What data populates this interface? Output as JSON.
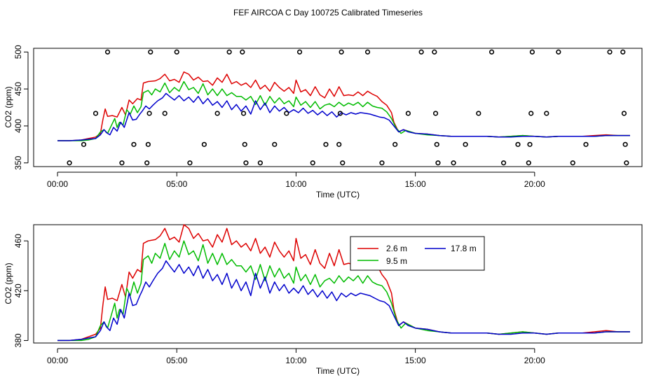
{
  "title": "FEF AIRCOA C  Day 100725  Calibrated Timeseries",
  "colors": {
    "series_2_6": "#dd0000",
    "series_9_5": "#00bb00",
    "series_17_8": "#0000cc",
    "axis": "#000000"
  },
  "chart_data": [
    {
      "type": "scatter+line",
      "xlabel": "Time (UTC)",
      "ylabel": "CO2 (ppm)",
      "xlim": [
        -1,
        24.5
      ],
      "ylim": [
        345,
        505
      ],
      "xticks": [
        0,
        5,
        10,
        15,
        20
      ],
      "xtick_labels": [
        "00:00",
        "05:00",
        "10:00",
        "15:00",
        "20:00"
      ],
      "yticks": [
        350,
        400,
        450,
        500
      ],
      "ytick_labels": [
        "350",
        "400",
        "450",
        "500"
      ],
      "flag_points": [
        {
          "x": 0.5,
          "y": 350
        },
        {
          "x": 1.1,
          "y": 375
        },
        {
          "x": 1.6,
          "y": 417
        },
        {
          "x": 2.1,
          "y": 500
        },
        {
          "x": 2.7,
          "y": 350
        },
        {
          "x": 3.2,
          "y": 375
        },
        {
          "x": 3.75,
          "y": 350
        },
        {
          "x": 3.8,
          "y": 375
        },
        {
          "x": 3.85,
          "y": 417
        },
        {
          "x": 3.9,
          "y": 500
        },
        {
          "x": 4.5,
          "y": 417
        },
        {
          "x": 5.0,
          "y": 500
        },
        {
          "x": 5.55,
          "y": 350
        },
        {
          "x": 6.15,
          "y": 375
        },
        {
          "x": 6.7,
          "y": 417
        },
        {
          "x": 7.2,
          "y": 500
        },
        {
          "x": 7.75,
          "y": 500
        },
        {
          "x": 7.8,
          "y": 417
        },
        {
          "x": 7.85,
          "y": 375
        },
        {
          "x": 7.9,
          "y": 350
        },
        {
          "x": 8.5,
          "y": 350
        },
        {
          "x": 9.1,
          "y": 375
        },
        {
          "x": 9.6,
          "y": 417
        },
        {
          "x": 10.15,
          "y": 500
        },
        {
          "x": 10.7,
          "y": 350
        },
        {
          "x": 11.25,
          "y": 375
        },
        {
          "x": 11.8,
          "y": 375
        },
        {
          "x": 11.85,
          "y": 417
        },
        {
          "x": 11.9,
          "y": 500
        },
        {
          "x": 11.95,
          "y": 350
        },
        {
          "x": 13.0,
          "y": 500
        },
        {
          "x": 13.6,
          "y": 350
        },
        {
          "x": 14.15,
          "y": 375
        },
        {
          "x": 14.7,
          "y": 417
        },
        {
          "x": 15.25,
          "y": 500
        },
        {
          "x": 15.8,
          "y": 500
        },
        {
          "x": 15.85,
          "y": 417
        },
        {
          "x": 15.9,
          "y": 375
        },
        {
          "x": 15.95,
          "y": 350
        },
        {
          "x": 16.6,
          "y": 350
        },
        {
          "x": 17.1,
          "y": 375
        },
        {
          "x": 17.65,
          "y": 417
        },
        {
          "x": 18.2,
          "y": 500
        },
        {
          "x": 18.7,
          "y": 350
        },
        {
          "x": 19.3,
          "y": 375
        },
        {
          "x": 19.75,
          "y": 350
        },
        {
          "x": 19.8,
          "y": 375
        },
        {
          "x": 19.85,
          "y": 417
        },
        {
          "x": 19.9,
          "y": 500
        },
        {
          "x": 20.5,
          "y": 417
        },
        {
          "x": 21.0,
          "y": 500
        },
        {
          "x": 21.6,
          "y": 350
        },
        {
          "x": 22.15,
          "y": 375
        },
        {
          "x": 23.15,
          "y": 500
        },
        {
          "x": 23.7,
          "y": 500
        },
        {
          "x": 23.75,
          "y": 417
        },
        {
          "x": 23.8,
          "y": 375
        },
        {
          "x": 23.85,
          "y": 350
        }
      ]
    },
    {
      "type": "line",
      "xlabel": "Time (UTC)",
      "ylabel": "CO2 (ppm)",
      "xlim": [
        -1,
        24.5
      ],
      "ylim": [
        378,
        473
      ],
      "xticks": [
        0,
        5,
        10,
        15,
        20
      ],
      "xtick_labels": [
        "00:00",
        "05:00",
        "10:00",
        "15:00",
        "20:00"
      ],
      "yticks": [
        380,
        420,
        460
      ],
      "ytick_labels": [
        "380",
        "420",
        "460"
      ],
      "legend": {
        "placement": "top-center",
        "entries": [
          {
            "label": "2.6 m",
            "series": "series_2_6"
          },
          {
            "label": "9.5 m",
            "series": "series_9_5"
          },
          {
            "label": "17.8 m",
            "series": "series_17_8"
          }
        ]
      }
    }
  ],
  "series_keypoints": {
    "series_2_6": [
      [
        0,
        380
      ],
      [
        0.5,
        380
      ],
      [
        1,
        381
      ],
      [
        1.3,
        383
      ],
      [
        1.6,
        385
      ],
      [
        1.8,
        390
      ],
      [
        1.9,
        408
      ],
      [
        2.0,
        423
      ],
      [
        2.1,
        413
      ],
      [
        2.3,
        414
      ],
      [
        2.5,
        412
      ],
      [
        2.7,
        425
      ],
      [
        2.85,
        415
      ],
      [
        3.0,
        435
      ],
      [
        3.15,
        430
      ],
      [
        3.35,
        437
      ],
      [
        3.5,
        435
      ],
      [
        3.6,
        458
      ],
      [
        3.8,
        460
      ],
      [
        4.1,
        461
      ],
      [
        4.3,
        464
      ],
      [
        4.5,
        470
      ],
      [
        4.7,
        461
      ],
      [
        4.9,
        463
      ],
      [
        5.1,
        459
      ],
      [
        5.3,
        473
      ],
      [
        5.5,
        470
      ],
      [
        5.7,
        462
      ],
      [
        5.9,
        466
      ],
      [
        6.1,
        460
      ],
      [
        6.3,
        461
      ],
      [
        6.5,
        455
      ],
      [
        6.7,
        465
      ],
      [
        6.9,
        459
      ],
      [
        7.1,
        470
      ],
      [
        7.3,
        457
      ],
      [
        7.5,
        460
      ],
      [
        7.7,
        455
      ],
      [
        7.9,
        458
      ],
      [
        8.1,
        452
      ],
      [
        8.3,
        462
      ],
      [
        8.5,
        450
      ],
      [
        8.7,
        455
      ],
      [
        8.9,
        447
      ],
      [
        9.1,
        459
      ],
      [
        9.3,
        452
      ],
      [
        9.5,
        447
      ],
      [
        9.7,
        452
      ],
      [
        9.9,
        444
      ],
      [
        10.0,
        462
      ],
      [
        10.2,
        446
      ],
      [
        10.4,
        449
      ],
      [
        10.6,
        441
      ],
      [
        10.8,
        453
      ],
      [
        11.0,
        442
      ],
      [
        11.2,
        438
      ],
      [
        11.4,
        450
      ],
      [
        11.6,
        440
      ],
      [
        11.8,
        453
      ],
      [
        12.0,
        441
      ],
      [
        12.2,
        442
      ],
      [
        12.4,
        441
      ],
      [
        12.6,
        446
      ],
      [
        12.8,
        441
      ],
      [
        13.0,
        447
      ],
      [
        13.2,
        443
      ],
      [
        13.4,
        440
      ],
      [
        13.6,
        433
      ],
      [
        13.8,
        428
      ],
      [
        14.0,
        418
      ],
      [
        14.1,
        405
      ],
      [
        14.3,
        392
      ],
      [
        14.5,
        395
      ],
      [
        14.7,
        393
      ],
      [
        15,
        390
      ],
      [
        15.5,
        389
      ],
      [
        16,
        387
      ],
      [
        16.5,
        386
      ],
      [
        17,
        386
      ],
      [
        17.5,
        386
      ],
      [
        18,
        386
      ],
      [
        18.5,
        385
      ],
      [
        19,
        386
      ],
      [
        19.5,
        387
      ],
      [
        20,
        386
      ],
      [
        20.5,
        385
      ],
      [
        21,
        386
      ],
      [
        21.5,
        386
      ],
      [
        22,
        386
      ],
      [
        22.5,
        387
      ],
      [
        23,
        388
      ],
      [
        23.5,
        387
      ],
      [
        24,
        387
      ]
    ],
    "series_9_5": [
      [
        0,
        380
      ],
      [
        0.5,
        380
      ],
      [
        1,
        380
      ],
      [
        1.3,
        381
      ],
      [
        1.6,
        383
      ],
      [
        1.8,
        392
      ],
      [
        1.95,
        395
      ],
      [
        2.1,
        390
      ],
      [
        2.25,
        400
      ],
      [
        2.4,
        410
      ],
      [
        2.5,
        398
      ],
      [
        2.6,
        405
      ],
      [
        2.75,
        401
      ],
      [
        2.9,
        422
      ],
      [
        3.05,
        416
      ],
      [
        3.2,
        427
      ],
      [
        3.35,
        418
      ],
      [
        3.5,
        426
      ],
      [
        3.6,
        445
      ],
      [
        3.8,
        448
      ],
      [
        3.95,
        442
      ],
      [
        4.1,
        450
      ],
      [
        4.3,
        446
      ],
      [
        4.5,
        458
      ],
      [
        4.7,
        445
      ],
      [
        4.9,
        452
      ],
      [
        5.1,
        447
      ],
      [
        5.3,
        460
      ],
      [
        5.5,
        449
      ],
      [
        5.7,
        452
      ],
      [
        5.9,
        444
      ],
      [
        6.1,
        457
      ],
      [
        6.3,
        442
      ],
      [
        6.5,
        450
      ],
      [
        6.7,
        441
      ],
      [
        6.9,
        450
      ],
      [
        7.1,
        441
      ],
      [
        7.3,
        445
      ],
      [
        7.5,
        440
      ],
      [
        7.7,
        440
      ],
      [
        7.9,
        435
      ],
      [
        8.1,
        440
      ],
      [
        8.3,
        429
      ],
      [
        8.5,
        441
      ],
      [
        8.7,
        428
      ],
      [
        8.9,
        440
      ],
      [
        9.1,
        431
      ],
      [
        9.3,
        438
      ],
      [
        9.5,
        430
      ],
      [
        9.7,
        434
      ],
      [
        9.9,
        426
      ],
      [
        10.0,
        439
      ],
      [
        10.2,
        428
      ],
      [
        10.4,
        433
      ],
      [
        10.6,
        425
      ],
      [
        10.8,
        433
      ],
      [
        11.0,
        423
      ],
      [
        11.2,
        428
      ],
      [
        11.4,
        430
      ],
      [
        11.6,
        426
      ],
      [
        11.8,
        432
      ],
      [
        12.0,
        427
      ],
      [
        12.2,
        431
      ],
      [
        12.4,
        428
      ],
      [
        12.6,
        432
      ],
      [
        12.8,
        426
      ],
      [
        13.0,
        432
      ],
      [
        13.2,
        427
      ],
      [
        13.4,
        425
      ],
      [
        13.6,
        424
      ],
      [
        13.8,
        419
      ],
      [
        14.0,
        410
      ],
      [
        14.2,
        397
      ],
      [
        14.4,
        390
      ],
      [
        14.6,
        394
      ],
      [
        15,
        390
      ],
      [
        15.5,
        388
      ],
      [
        16,
        387
      ],
      [
        16.5,
        386
      ],
      [
        17,
        386
      ],
      [
        17.5,
        386
      ],
      [
        18,
        386
      ],
      [
        18.5,
        385
      ],
      [
        19,
        386
      ],
      [
        19.5,
        387
      ],
      [
        20,
        386
      ],
      [
        20.5,
        385
      ],
      [
        21,
        386
      ],
      [
        21.5,
        386
      ],
      [
        22,
        386
      ],
      [
        22.5,
        386
      ],
      [
        23,
        387
      ],
      [
        23.5,
        387
      ],
      [
        24,
        387
      ]
    ],
    "series_17_8": [
      [
        0,
        380
      ],
      [
        0.5,
        380
      ],
      [
        1,
        381
      ],
      [
        1.3,
        382
      ],
      [
        1.6,
        383
      ],
      [
        1.8,
        388
      ],
      [
        1.95,
        395
      ],
      [
        2.05,
        391
      ],
      [
        2.2,
        388
      ],
      [
        2.35,
        398
      ],
      [
        2.5,
        393
      ],
      [
        2.65,
        405
      ],
      [
        2.8,
        398
      ],
      [
        3.0,
        418
      ],
      [
        3.15,
        408
      ],
      [
        3.3,
        409
      ],
      [
        3.45,
        416
      ],
      [
        3.55,
        420
      ],
      [
        3.7,
        427
      ],
      [
        3.85,
        423
      ],
      [
        4.0,
        428
      ],
      [
        4.2,
        434
      ],
      [
        4.4,
        438
      ],
      [
        4.55,
        444
      ],
      [
        4.7,
        440
      ],
      [
        4.9,
        435
      ],
      [
        5.1,
        441
      ],
      [
        5.3,
        434
      ],
      [
        5.5,
        439
      ],
      [
        5.7,
        432
      ],
      [
        5.9,
        440
      ],
      [
        6.1,
        430
      ],
      [
        6.3,
        437
      ],
      [
        6.5,
        428
      ],
      [
        6.7,
        433
      ],
      [
        6.9,
        425
      ],
      [
        7.1,
        434
      ],
      [
        7.3,
        422
      ],
      [
        7.5,
        429
      ],
      [
        7.7,
        420
      ],
      [
        7.9,
        427
      ],
      [
        8.1,
        416
      ],
      [
        8.3,
        434
      ],
      [
        8.5,
        422
      ],
      [
        8.7,
        431
      ],
      [
        8.9,
        418
      ],
      [
        9.1,
        427
      ],
      [
        9.3,
        420
      ],
      [
        9.5,
        425
      ],
      [
        9.7,
        418
      ],
      [
        9.9,
        422
      ],
      [
        10.1,
        418
      ],
      [
        10.3,
        424
      ],
      [
        10.5,
        417
      ],
      [
        10.7,
        421
      ],
      [
        10.9,
        415
      ],
      [
        11.1,
        420
      ],
      [
        11.3,
        414
      ],
      [
        11.5,
        419
      ],
      [
        11.7,
        412
      ],
      [
        11.9,
        418
      ],
      [
        12.1,
        415
      ],
      [
        12.3,
        418
      ],
      [
        12.5,
        416
      ],
      [
        12.7,
        418
      ],
      [
        12.9,
        417
      ],
      [
        13.1,
        416
      ],
      [
        13.3,
        414
      ],
      [
        13.5,
        412
      ],
      [
        13.7,
        411
      ],
      [
        13.9,
        408
      ],
      [
        14.1,
        400
      ],
      [
        14.3,
        392
      ],
      [
        14.5,
        395
      ],
      [
        14.7,
        392
      ],
      [
        15,
        390
      ],
      [
        15.5,
        389
      ],
      [
        16,
        387
      ],
      [
        16.5,
        386
      ],
      [
        17,
        386
      ],
      [
        17.5,
        386
      ],
      [
        18,
        386
      ],
      [
        18.5,
        385
      ],
      [
        19,
        385
      ],
      [
        19.5,
        386
      ],
      [
        20,
        386
      ],
      [
        20.5,
        385
      ],
      [
        21,
        386
      ],
      [
        21.5,
        386
      ],
      [
        22,
        386
      ],
      [
        22.5,
        386
      ],
      [
        23,
        387
      ],
      [
        23.5,
        387
      ],
      [
        24,
        387
      ]
    ]
  }
}
